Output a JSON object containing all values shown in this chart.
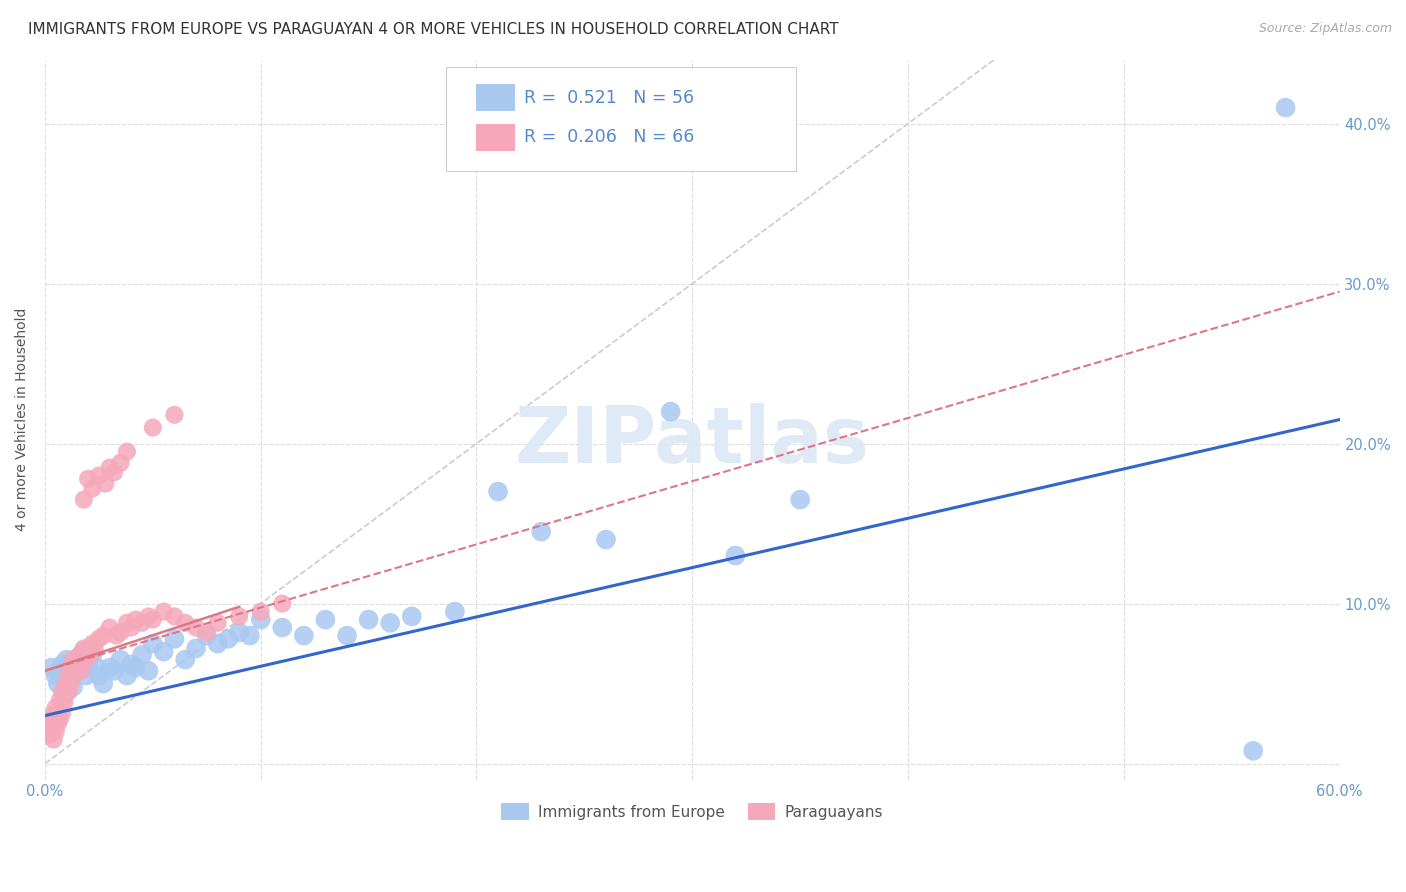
{
  "title": "IMMIGRANTS FROM EUROPE VS PARAGUAYAN 4 OR MORE VEHICLES IN HOUSEHOLD CORRELATION CHART",
  "source": "Source: ZipAtlas.com",
  "ylabel": "4 or more Vehicles in Household",
  "xlim": [
    0.0,
    0.6
  ],
  "ylim": [
    -0.01,
    0.44
  ],
  "xticks": [
    0.0,
    0.1,
    0.2,
    0.3,
    0.4,
    0.5,
    0.6
  ],
  "yticks": [
    0.0,
    0.1,
    0.2,
    0.3,
    0.4
  ],
  "xtick_labels": [
    "0.0%",
    "",
    "",
    "",
    "",
    "",
    "60.0%"
  ],
  "right_ytick_labels": [
    "",
    "10.0%",
    "20.0%",
    "30.0%",
    "40.0%"
  ],
  "blue_R": 0.521,
  "blue_N": 56,
  "pink_R": 0.206,
  "pink_N": 66,
  "blue_color": "#a8c8f0",
  "pink_color": "#f5a8ba",
  "blue_line_color": "#3366cc",
  "pink_line_color": "#dd7788",
  "diagonal_color": "#cccccc",
  "grid_color": "#dddddd",
  "watermark": "ZIPatlas",
  "blue_scatter_x": [
    0.003,
    0.005,
    0.006,
    0.007,
    0.008,
    0.009,
    0.01,
    0.01,
    0.011,
    0.012,
    0.013,
    0.014,
    0.015,
    0.017,
    0.018,
    0.019,
    0.02,
    0.022,
    0.024,
    0.025,
    0.027,
    0.03,
    0.032,
    0.035,
    0.038,
    0.04,
    0.042,
    0.045,
    0.048,
    0.05,
    0.055,
    0.06,
    0.065,
    0.07,
    0.075,
    0.08,
    0.085,
    0.09,
    0.095,
    0.1,
    0.11,
    0.12,
    0.13,
    0.14,
    0.15,
    0.16,
    0.17,
    0.19,
    0.21,
    0.23,
    0.26,
    0.29,
    0.32,
    0.35,
    0.56,
    0.575
  ],
  "blue_scatter_y": [
    0.06,
    0.055,
    0.05,
    0.058,
    0.062,
    0.05,
    0.065,
    0.045,
    0.06,
    0.055,
    0.048,
    0.065,
    0.058,
    0.06,
    0.07,
    0.055,
    0.062,
    0.068,
    0.06,
    0.055,
    0.05,
    0.06,
    0.058,
    0.065,
    0.055,
    0.062,
    0.06,
    0.068,
    0.058,
    0.075,
    0.07,
    0.078,
    0.065,
    0.072,
    0.08,
    0.075,
    0.078,
    0.082,
    0.08,
    0.09,
    0.085,
    0.08,
    0.09,
    0.08,
    0.09,
    0.088,
    0.092,
    0.095,
    0.17,
    0.145,
    0.14,
    0.22,
    0.13,
    0.165,
    0.008,
    0.41
  ],
  "pink_scatter_x": [
    0.001,
    0.002,
    0.002,
    0.003,
    0.003,
    0.004,
    0.004,
    0.005,
    0.005,
    0.006,
    0.006,
    0.007,
    0.007,
    0.008,
    0.008,
    0.009,
    0.009,
    0.01,
    0.01,
    0.011,
    0.011,
    0.012,
    0.012,
    0.013,
    0.013,
    0.014,
    0.015,
    0.016,
    0.017,
    0.018,
    0.019,
    0.02,
    0.021,
    0.022,
    0.023,
    0.025,
    0.027,
    0.03,
    0.033,
    0.035,
    0.038,
    0.04,
    0.042,
    0.045,
    0.048,
    0.05,
    0.055,
    0.06,
    0.065,
    0.07,
    0.075,
    0.08,
    0.09,
    0.1,
    0.11,
    0.018,
    0.02,
    0.022,
    0.025,
    0.028,
    0.03,
    0.032,
    0.035,
    0.038,
    0.05,
    0.06
  ],
  "pink_scatter_y": [
    0.02,
    0.025,
    0.018,
    0.03,
    0.022,
    0.028,
    0.015,
    0.035,
    0.02,
    0.03,
    0.025,
    0.04,
    0.028,
    0.045,
    0.032,
    0.042,
    0.038,
    0.048,
    0.05,
    0.055,
    0.045,
    0.06,
    0.05,
    0.065,
    0.055,
    0.06,
    0.062,
    0.068,
    0.058,
    0.072,
    0.065,
    0.07,
    0.068,
    0.075,
    0.072,
    0.078,
    0.08,
    0.085,
    0.08,
    0.082,
    0.088,
    0.085,
    0.09,
    0.088,
    0.092,
    0.09,
    0.095,
    0.092,
    0.088,
    0.085,
    0.082,
    0.088,
    0.092,
    0.095,
    0.1,
    0.165,
    0.178,
    0.172,
    0.18,
    0.175,
    0.185,
    0.182,
    0.188,
    0.195,
    0.21,
    0.218
  ],
  "blue_line_x0": 0.0,
  "blue_line_x1": 0.6,
  "blue_line_y0": 0.03,
  "blue_line_y1": 0.215,
  "pink_line_x0": 0.0,
  "pink_line_x1": 0.6,
  "pink_line_y0": 0.058,
  "pink_line_y1": 0.295,
  "title_fontsize": 11,
  "axis_label_fontsize": 10,
  "tick_fontsize": 10.5,
  "background_color": "#ffffff",
  "tick_color": "#6699cc"
}
